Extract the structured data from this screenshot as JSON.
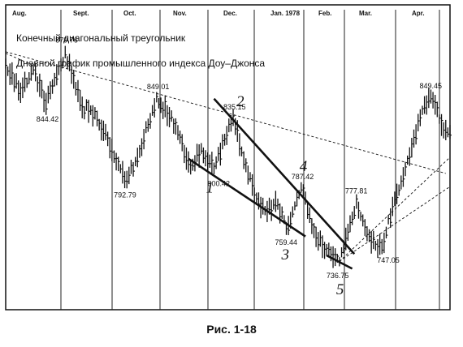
{
  "chart_data": {
    "type": "bar",
    "subtype": "ohlc-daily",
    "title": "Конечный диагональный треугольник",
    "subtitle": "Дневной график промышленного индекса Доу–Джонса",
    "months": [
      "Aug.",
      "Sept.",
      "Oct.",
      "Nov.",
      "Dec.",
      "Jan. 1978",
      "Feb.",
      "Mar.",
      "Apr."
    ],
    "grid": "vertical",
    "pivots": [
      {
        "day": 0,
        "price": 872,
        "label": ""
      },
      {
        "day": 7,
        "price": 852,
        "label": ""
      },
      {
        "day": 13,
        "price": 868,
        "label": ""
      },
      {
        "day": 19,
        "price": 844.42,
        "label": "844.42"
      },
      {
        "day": 28,
        "price": 879.76,
        "label": "879.76"
      },
      {
        "day": 36,
        "price": 842,
        "label": ""
      },
      {
        "day": 42,
        "price": 838,
        "label": ""
      },
      {
        "day": 50,
        "price": 813,
        "label": ""
      },
      {
        "day": 57,
        "price": 792.79,
        "label": "792.79"
      },
      {
        "day": 63,
        "price": 812,
        "label": ""
      },
      {
        "day": 71,
        "price": 849.01,
        "label": "849.01"
      },
      {
        "day": 80,
        "price": 829,
        "label": ""
      },
      {
        "day": 87,
        "price": 801,
        "label": ""
      },
      {
        "day": 92,
        "price": 814,
        "label": ""
      },
      {
        "day": 98,
        "price": 800.42,
        "label": "800.42"
      },
      {
        "day": 107,
        "price": 835.15,
        "label": "835.15"
      },
      {
        "day": 111,
        "price": 812,
        "label": ""
      },
      {
        "day": 117,
        "price": 782,
        "label": ""
      },
      {
        "day": 123,
        "price": 771,
        "label": ""
      },
      {
        "day": 128,
        "price": 776,
        "label": ""
      },
      {
        "day": 132,
        "price": 759.44,
        "label": "759.44"
      },
      {
        "day": 139,
        "price": 787.42,
        "label": "787.42"
      },
      {
        "day": 145,
        "price": 758,
        "label": ""
      },
      {
        "day": 149,
        "price": 747,
        "label": ""
      },
      {
        "day": 153,
        "price": 742.12,
        "label": ""
      },
      {
        "day": 157,
        "price": 736.75,
        "label": "736.75"
      },
      {
        "day": 165,
        "price": 777.81,
        "label": "777.81"
      },
      {
        "day": 172,
        "price": 750,
        "label": ""
      },
      {
        "day": 177,
        "price": 747.05,
        "label": "747.05"
      },
      {
        "day": 184,
        "price": 783,
        "label": ""
      },
      {
        "day": 188,
        "price": 800,
        "label": ""
      },
      {
        "day": 195,
        "price": 835,
        "label": ""
      },
      {
        "day": 200,
        "price": 849.45,
        "label": "849.45"
      },
      {
        "day": 205,
        "price": 830,
        "label": ""
      },
      {
        "day": 208,
        "price": 825,
        "label": ""
      }
    ],
    "waves": [
      {
        "label": "1",
        "day": 98,
        "price": 800.42
      },
      {
        "label": "2",
        "day": 107,
        "price": 835.15
      },
      {
        "label": "3",
        "day": 132,
        "price": 759.44
      },
      {
        "label": "4",
        "day": 139,
        "price": 787.42
      },
      {
        "label": "5",
        "day": 157,
        "price": 736.75
      }
    ],
    "trendlines": [
      {
        "style": "solid",
        "from": [
          86,
          807
        ],
        "to": [
          141,
          754
        ]
      },
      {
        "style": "solid",
        "from": [
          98,
          848
        ],
        "to": [
          164,
          742
        ]
      },
      {
        "style": "solid",
        "from": [
          151,
          741
        ],
        "to": [
          163,
          732
        ]
      },
      {
        "style": "dashed",
        "from": [
          0,
          880
        ],
        "to": [
          207,
          797
        ]
      },
      {
        "style": "dashed",
        "from": [
          0,
          879
        ],
        "to": [
          14,
          870
        ]
      },
      {
        "style": "dashed",
        "from": [
          157,
          737
        ],
        "to": [
          209,
          788
        ]
      },
      {
        "style": "dashed",
        "from": [
          157,
          737
        ],
        "to": [
          209,
          808
        ]
      }
    ],
    "xlim": [
      0,
      209
    ],
    "ylim": [
      704,
      912
    ]
  },
  "caption": "Рис. 1-18"
}
